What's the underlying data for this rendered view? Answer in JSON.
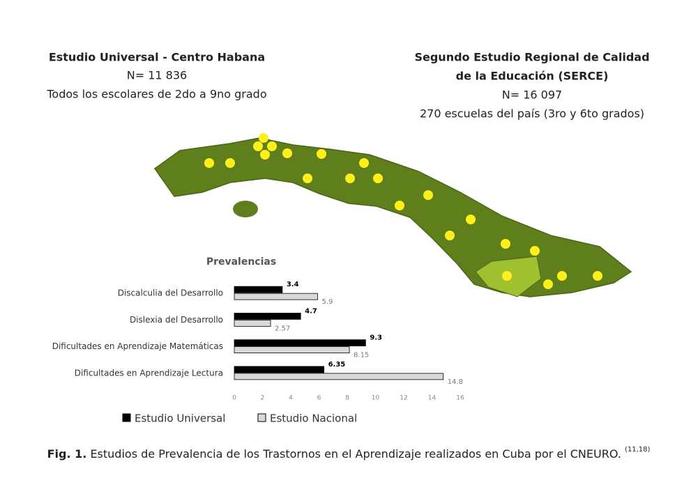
{
  "left_heading": {
    "title": "Estudio Universal - Centro Habana",
    "n": "N= 11 836",
    "scope": "Todos los escolares de 2do a 9no grado"
  },
  "right_heading": {
    "title_1": "Segundo Estudio Regional de Calidad",
    "title_2": "de la Educación (SERCE)",
    "n": "N= 16 097",
    "scope": "270 escuelas del país (3ro y 6to grados)"
  },
  "caption": {
    "label": "Fig. 1.",
    "text": "Estudios de Prevalencia de los Trastornos en el Aprendizaje realizados en Cuba por el CNEURO.",
    "refs": "(11,18)"
  },
  "chart_data": {
    "type": "bar",
    "orientation": "horizontal",
    "title": "Prevalencias",
    "categories": [
      "Discalculia del Desarrollo",
      "Dislexia del Desarrollo",
      "Dificultades en Aprendizaje Matemáticas",
      "Dificultades en Aprendizaje Lectura"
    ],
    "series": [
      {
        "name": "Estudio Universal",
        "color": "#000000",
        "values": [
          3.4,
          4.7,
          9.3,
          6.35
        ]
      },
      {
        "name": "Estudio Nacional",
        "color": "#d9d9d9",
        "values": [
          5.9,
          2.57,
          8.15,
          14.8
        ]
      }
    ],
    "xlim": [
      0,
      16
    ],
    "xticks": [
      0,
      2,
      4,
      6,
      8,
      10,
      12,
      14,
      16
    ],
    "grid": false,
    "legend": "bottom"
  }
}
